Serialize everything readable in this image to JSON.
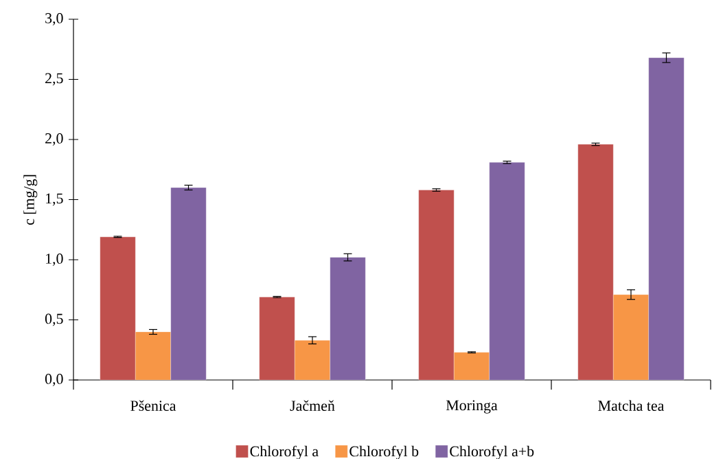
{
  "chart_data": {
    "type": "bar",
    "ylabel": "c [mg/g]",
    "categories": [
      "Pšenica",
      "Jačmeň",
      "Moringa",
      "Matcha tea"
    ],
    "series": [
      {
        "name": "Chlorofyl a",
        "color": "#c0504d",
        "values": [
          1.19,
          0.69,
          1.58,
          1.96
        ],
        "errors": [
          0.005,
          0.005,
          0.01,
          0.01
        ]
      },
      {
        "name": "Chlorofyl b",
        "color": "#f79646",
        "values": [
          0.4,
          0.33,
          0.23,
          0.71
        ],
        "errors": [
          0.02,
          0.03,
          0.005,
          0.04
        ]
      },
      {
        "name": "Chlorofyl a+b",
        "color": "#8064a2",
        "values": [
          1.6,
          1.02,
          1.81,
          2.68
        ],
        "errors": [
          0.02,
          0.03,
          0.01,
          0.04
        ]
      }
    ],
    "ylim": [
      0,
      3.0
    ],
    "yticks": [
      {
        "value": 0,
        "label": "0,0"
      },
      {
        "value": 0.5,
        "label": "0,5"
      },
      {
        "value": 1.0,
        "label": "1,0"
      },
      {
        "value": 1.5,
        "label": "1,5"
      },
      {
        "value": 2.0,
        "label": "2,0"
      },
      {
        "value": 2.5,
        "label": "2,5"
      },
      {
        "value": 3.0,
        "label": "3,0"
      }
    ],
    "grid": false,
    "legend": "bottom"
  }
}
